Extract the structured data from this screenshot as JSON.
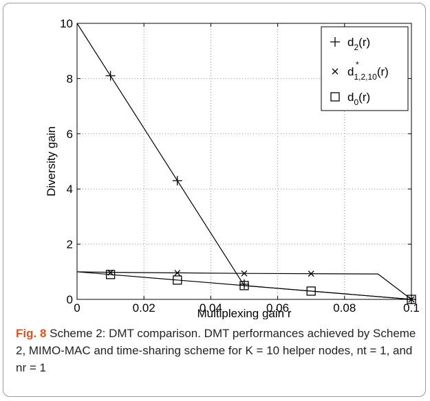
{
  "chart_data": {
    "type": "line",
    "xlabel": "Multiplexing gain r",
    "ylabel": "Diversity gain",
    "xlim": [
      0,
      0.1
    ],
    "ylim": [
      0,
      10
    ],
    "xticks": [
      0,
      0.02,
      0.04,
      0.06,
      0.08,
      0.1
    ],
    "xtick_labels": [
      "0",
      "0.02",
      "0.04",
      "0.06",
      "0.08",
      "0.1"
    ],
    "yticks": [
      0,
      2,
      4,
      6,
      8,
      10
    ],
    "ytick_labels": [
      "0",
      "2",
      "4",
      "6",
      "8",
      "10"
    ],
    "grid": true,
    "legend_position": "top-right",
    "series": [
      {
        "name": "d2(r)",
        "legend_main": "d",
        "legend_sub": "2",
        "legend_sup": "",
        "legend_suffix": "(r)",
        "marker": "plus",
        "line": {
          "x": [
            0,
            0.05,
            0.1
          ],
          "y": [
            10,
            0.5,
            0
          ]
        },
        "markers": {
          "x": [
            0.01,
            0.03,
            0.05,
            0.1
          ],
          "y": [
            8.1,
            4.3,
            0.55,
            0
          ]
        }
      },
      {
        "name": "d*1,2,10(r)",
        "legend_main": "d",
        "legend_sub": "1,2,10",
        "legend_sup": "*",
        "legend_suffix": "(r)",
        "marker": "cross",
        "line": {
          "x": [
            0,
            0.01,
            0.03,
            0.05,
            0.07,
            0.09,
            0.1
          ],
          "y": [
            1,
            0.98,
            0.96,
            0.94,
            0.93,
            0.92,
            0
          ]
        },
        "markers": {
          "x": [
            0.01,
            0.03,
            0.05,
            0.07,
            0.1
          ],
          "y": [
            0.97,
            0.96,
            0.94,
            0.93,
            0
          ]
        }
      },
      {
        "name": "d0(r)",
        "legend_main": "d",
        "legend_sub": "0",
        "legend_sup": "",
        "legend_suffix": "(r)",
        "marker": "square",
        "line": {
          "x": [
            0,
            0.1
          ],
          "y": [
            1,
            0
          ]
        },
        "markers": {
          "x": [
            0.01,
            0.03,
            0.05,
            0.07,
            0.1
          ],
          "y": [
            0.9,
            0.7,
            0.5,
            0.3,
            0
          ]
        }
      }
    ]
  },
  "caption": {
    "label": "Fig. 8",
    "text": " Scheme 2: DMT comparison. DMT performances achieved by Scheme 2, MIMO-MAC and time-sharing scheme for K = 10 helper nodes, nt = 1, and nr = 1"
  }
}
